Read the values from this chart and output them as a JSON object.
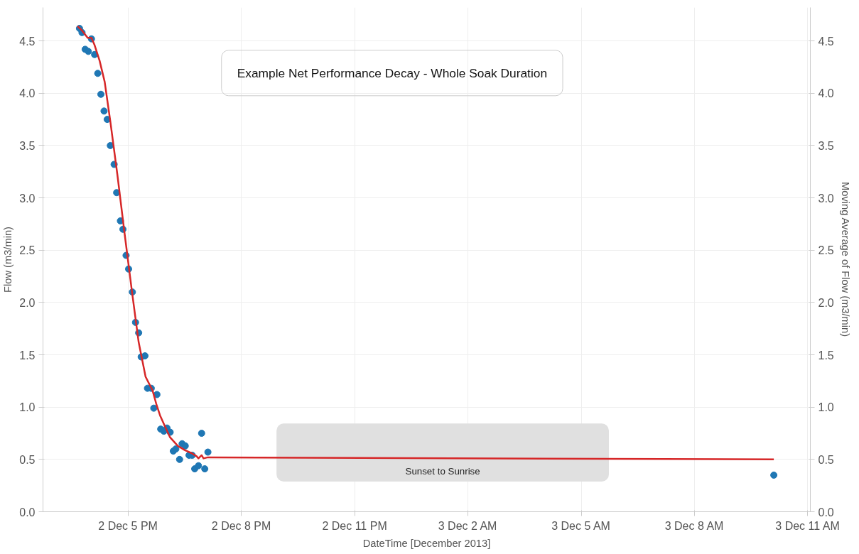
{
  "chart_data": {
    "type": "scatter",
    "title": "Example Net Performance Decay - Whole Soak Duration",
    "xlabel": "DateTime [December 2013]",
    "ylabel": "Flow (m3/min)",
    "y2label": "Moving Average of Flow (m3/min)",
    "xlim": [
      "2013-12-02T14:45",
      "2013-12-03T11:04"
    ],
    "xticks": [
      {
        "value": "2013-12-02T17:00",
        "label": "2 Dec 5 PM"
      },
      {
        "value": "2013-12-02T20:00",
        "label": "2 Dec 8 PM"
      },
      {
        "value": "2013-12-02T23:00",
        "label": "2 Dec 11 PM"
      },
      {
        "value": "2013-12-03T02:00",
        "label": "3 Dec 2 AM"
      },
      {
        "value": "2013-12-03T05:00",
        "label": "3 Dec 5 AM"
      },
      {
        "value": "2013-12-03T08:00",
        "label": "3 Dec 8 AM"
      },
      {
        "value": "2013-12-03T11:00",
        "label": "3 Dec 11 AM"
      }
    ],
    "ylim": [
      0,
      4.82
    ],
    "yticks": [
      {
        "value": 0,
        "label": "0.0"
      },
      0.5,
      {
        "value": 1,
        "label": "1.0"
      },
      1.5,
      {
        "value": 2,
        "label": "2.0"
      },
      2.5,
      {
        "value": 3,
        "label": "3.0"
      },
      3.5,
      {
        "value": 4,
        "label": "4.0"
      },
      4.5
    ],
    "y2lim": [
      0,
      4.82
    ],
    "y2ticks": [
      {
        "value": 0,
        "label": "0.0"
      },
      0.5,
      {
        "value": 1,
        "label": "1.0"
      },
      1.5,
      {
        "value": 2,
        "label": "2.0"
      },
      2.5,
      {
        "value": 3,
        "label": "3.0"
      },
      3.5,
      {
        "value": 4,
        "label": "4.0"
      },
      4.5
    ],
    "grid": true,
    "bands": [
      {
        "axis": "x",
        "from": "2013-12-02T20:56",
        "to": "2013-12-03T05:44",
        "label": "Sunset to Sunrise",
        "color": "#e0e0e0"
      }
    ],
    "series": [
      {
        "marker": "circle",
        "color": "#1f77b4",
        "x": [
          "2013-12-02T15:43",
          "2013-12-02T15:47",
          "2013-12-02T15:52",
          "2013-12-02T15:57",
          "2013-12-02T16:02",
          "2013-12-02T16:07",
          "2013-12-02T16:12",
          "2013-12-02T16:17",
          "2013-12-02T16:22",
          "2013-12-02T16:27",
          "2013-12-02T16:32",
          "2013-12-02T16:38",
          "2013-12-02T16:42",
          "2013-12-02T16:48",
          "2013-12-02T16:52",
          "2013-12-02T16:57",
          "2013-12-02T17:01",
          "2013-12-02T17:07",
          "2013-12-02T17:12",
          "2013-12-02T17:17",
          "2013-12-02T17:21",
          "2013-12-02T17:27",
          "2013-12-02T17:31",
          "2013-12-02T17:37",
          "2013-12-02T17:41",
          "2013-12-02T17:46",
          "2013-12-02T17:52",
          "2013-12-02T17:57",
          "2013-12-02T18:02",
          "2013-12-02T18:07",
          "2013-12-02T18:12",
          "2013-12-02T18:16",
          "2013-12-02T18:22",
          "2013-12-02T18:26",
          "2013-12-02T18:31",
          "2013-12-02T18:37",
          "2013-12-02T18:42",
          "2013-12-02T18:46",
          "2013-12-02T18:52",
          "2013-12-02T18:57",
          "2013-12-02T19:02",
          "2013-12-02T19:07",
          "2013-12-03T10:06"
        ],
        "values": [
          4.62,
          4.58,
          4.42,
          4.4,
          4.52,
          4.37,
          4.19,
          3.99,
          3.83,
          3.75,
          3.5,
          3.32,
          3.05,
          2.78,
          2.7,
          2.45,
          2.32,
          2.1,
          1.81,
          1.71,
          1.48,
          1.49,
          1.18,
          1.18,
          0.99,
          1.12,
          0.79,
          0.77,
          0.8,
          0.76,
          0.58,
          0.6,
          0.5,
          0.65,
          0.63,
          0.54,
          0.54,
          0.41,
          0.44,
          0.75,
          0.41,
          0.57,
          0.35
        ]
      },
      {
        "type": "line",
        "axis": "y2",
        "marker": "none",
        "line_style": "solid",
        "color": "#d62728",
        "x": [
          "2013-12-02T15:40",
          "2013-12-02T15:47",
          "2013-12-02T15:56",
          "2013-12-02T16:02",
          "2013-12-02T16:07",
          "2013-12-02T16:15",
          "2013-12-02T16:23",
          "2013-12-02T16:32",
          "2013-12-02T16:43",
          "2013-12-02T16:54",
          "2013-12-02T17:06",
          "2013-12-02T17:17",
          "2013-12-02T17:28",
          "2013-12-02T17:39",
          "2013-12-02T17:45",
          "2013-12-02T17:51",
          "2013-12-02T18:00",
          "2013-12-02T18:07",
          "2013-12-02T18:19",
          "2013-12-02T18:30",
          "2013-12-02T18:41",
          "2013-12-02T18:49",
          "2013-12-02T18:52",
          "2013-12-02T18:57",
          "2013-12-02T19:00",
          "2013-12-02T19:07",
          "2013-12-03T10:06"
        ],
        "values": [
          4.64,
          4.6,
          4.53,
          4.53,
          4.46,
          4.31,
          4.11,
          3.73,
          3.23,
          2.69,
          2.12,
          1.62,
          1.29,
          1.16,
          1.03,
          0.92,
          0.8,
          0.71,
          0.63,
          0.59,
          0.56,
          0.53,
          0.51,
          0.54,
          0.51,
          0.52,
          0.5
        ]
      }
    ]
  }
}
